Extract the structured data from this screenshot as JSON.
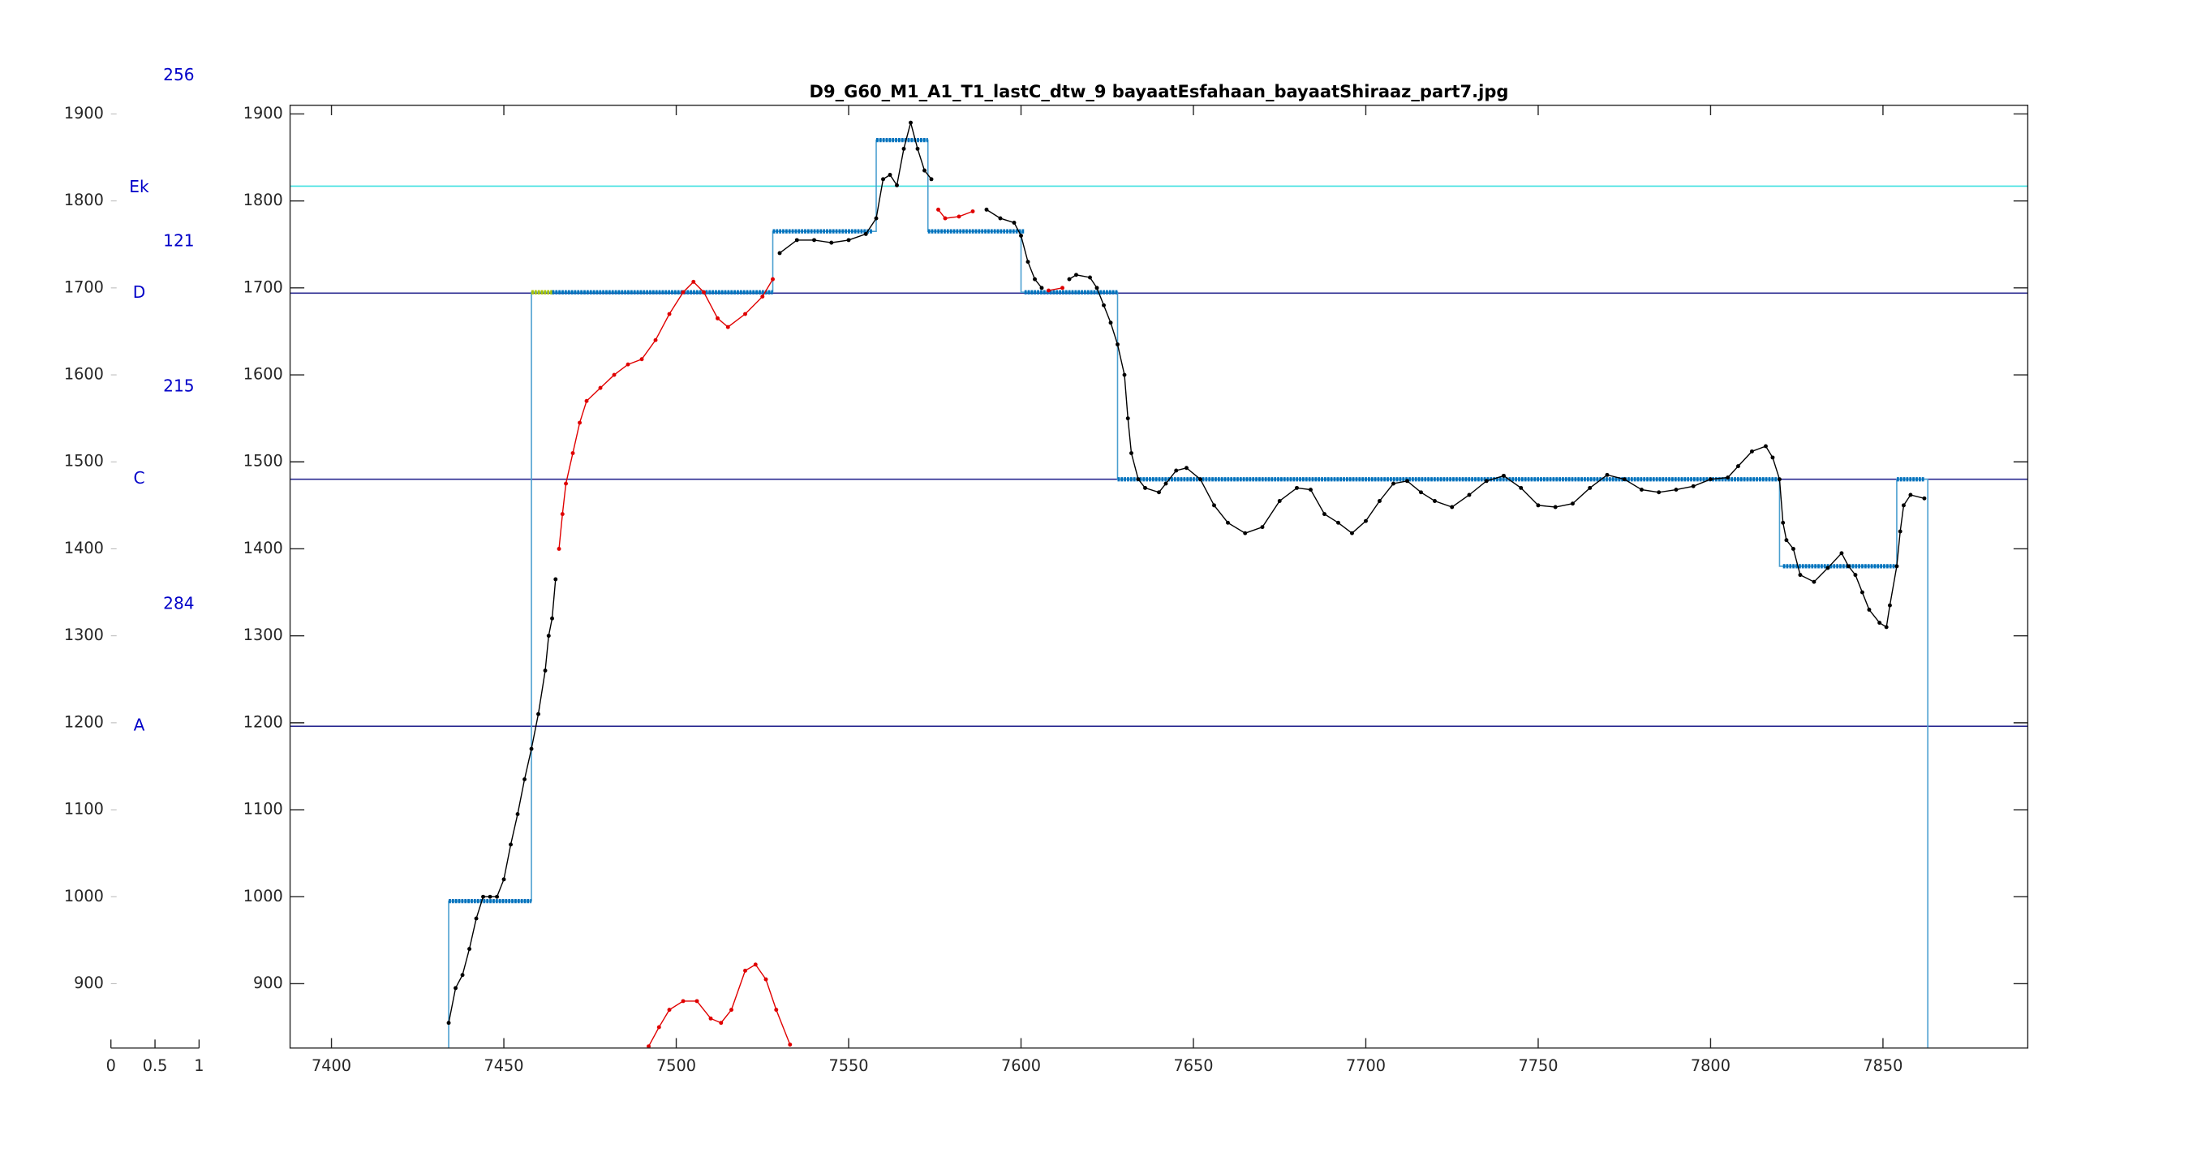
{
  "chart_data": [
    {
      "type": "line",
      "title": "D9_G60_M1_A1_T1_lastC_dtw_9 bayaatEsfahaan_bayaatShiraaz_part7.jpg",
      "xlim": [
        7388,
        7892
      ],
      "xticks": [
        7400,
        7450,
        7500,
        7550,
        7600,
        7650,
        7700,
        7750,
        7800,
        7850
      ],
      "ylim": [
        826,
        1910
      ],
      "yticks": [
        900,
        1000,
        1100,
        1200,
        1300,
        1400,
        1500,
        1600,
        1700,
        1800,
        1900
      ],
      "hlines": [
        {
          "value": 1817,
          "color": "#3fe0e0"
        },
        {
          "value": 1694,
          "color": "#2a2a90"
        },
        {
          "value": 1480,
          "color": "#2a2a90"
        },
        {
          "value": 1196,
          "color": "#2a2a90"
        }
      ],
      "steps": {
        "color": "#4a9fd0",
        "edges": [
          7434,
          7458,
          7528,
          7558,
          7573,
          7600,
          7628,
          7820,
          7854,
          7863
        ],
        "values": [
          995,
          1695,
          1765,
          1870,
          1765,
          1695,
          1480,
          1380,
          1480
        ]
      },
      "segments": [
        {
          "start": 7434,
          "end": 7458,
          "value": 995,
          "color": "#0072bd"
        },
        {
          "start": 7458,
          "end": 7464,
          "value": 1695,
          "color": "#a8c400"
        },
        {
          "start": 7464,
          "end": 7528,
          "value": 1695,
          "color": "#0072bd"
        },
        {
          "start": 7528,
          "end": 7557,
          "value": 1765,
          "color": "#0072bd"
        },
        {
          "start": 7558,
          "end": 7573,
          "value": 1870,
          "color": "#0072bd"
        },
        {
          "start": 7573,
          "end": 7601,
          "value": 1765,
          "color": "#0072bd"
        },
        {
          "start": 7601,
          "end": 7628,
          "value": 1695,
          "color": "#0072bd"
        },
        {
          "start": 7628,
          "end": 7820,
          "value": 1480,
          "color": "#0072bd"
        },
        {
          "start": 7821,
          "end": 7854,
          "value": 1380,
          "color": "#0072bd"
        },
        {
          "start": 7854,
          "end": 7862,
          "value": 1480,
          "color": "#0072bd"
        }
      ],
      "series": [
        {
          "color": "#000000",
          "x": [
            7434,
            7436,
            7438,
            7440,
            7442,
            7444,
            7446,
            7448,
            7450,
            7452,
            7454,
            7456,
            7458,
            7460,
            7462,
            7463,
            7464,
            7465
          ],
          "values": [
            855,
            895,
            910,
            940,
            975,
            1000,
            1000,
            1000,
            1020,
            1060,
            1095,
            1135,
            1170,
            1210,
            1260,
            1300,
            1320,
            1365
          ]
        },
        {
          "color": "#e00000",
          "x": [
            7466,
            7467,
            7468,
            7470,
            7472,
            7474,
            7478,
            7482,
            7486,
            7490,
            7494,
            7498,
            7502,
            7505,
            7508,
            7512,
            7515,
            7520,
            7525,
            7528
          ],
          "values": [
            1400,
            1440,
            1475,
            1510,
            1545,
            1570,
            1585,
            1600,
            1612,
            1618,
            1640,
            1670,
            1695,
            1707,
            1695,
            1665,
            1655,
            1670,
            1690,
            1710
          ]
        },
        {
          "color": "#000000",
          "x": [
            7530,
            7535,
            7540,
            7545,
            7550,
            7555,
            7558,
            7560,
            7562,
            7564,
            7566,
            7568,
            7570,
            7572,
            7574
          ],
          "values": [
            1740,
            1755,
            1755,
            1752,
            1755,
            1762,
            1780,
            1825,
            1830,
            1818,
            1860,
            1890,
            1860,
            1835,
            1825
          ]
        },
        {
          "color": "#e00000",
          "x": [
            7576,
            7578,
            7582,
            7586
          ],
          "values": [
            1790,
            1780,
            1782,
            1788
          ]
        },
        {
          "color": "#000000",
          "x": [
            7590,
            7594,
            7598,
            7600,
            7602,
            7604,
            7606
          ],
          "values": [
            1790,
            1780,
            1775,
            1760,
            1730,
            1710,
            1700
          ]
        },
        {
          "color": "#e00000",
          "x": [
            7608,
            7612
          ],
          "values": [
            1697,
            1700
          ]
        },
        {
          "color": "#000000",
          "x": [
            7614,
            7616,
            7620,
            7622,
            7624,
            7626,
            7628,
            7630,
            7631,
            7632,
            7634,
            7636,
            7640,
            7642,
            7645,
            7648,
            7652,
            7656,
            7660,
            7665,
            7670,
            7675,
            7680,
            7684,
            7688,
            7692,
            7696,
            7700,
            7704,
            7708,
            7712,
            7716,
            7720,
            7725,
            7730,
            7735,
            7740,
            7745,
            7750,
            7755,
            7760,
            7765,
            7770,
            7775,
            7780,
            7785,
            7790,
            7795,
            7800,
            7805,
            7808,
            7812,
            7816,
            7818,
            7820,
            7821,
            7822,
            7824,
            7826,
            7830,
            7834,
            7838,
            7840,
            7842,
            7844,
            7846,
            7849,
            7851,
            7852,
            7854,
            7855,
            7856,
            7858,
            7862
          ],
          "values": [
            1710,
            1715,
            1712,
            1700,
            1680,
            1660,
            1635,
            1600,
            1550,
            1510,
            1480,
            1470,
            1465,
            1475,
            1490,
            1493,
            1480,
            1450,
            1430,
            1418,
            1425,
            1455,
            1470,
            1468,
            1440,
            1430,
            1418,
            1432,
            1455,
            1475,
            1478,
            1465,
            1455,
            1448,
            1462,
            1478,
            1484,
            1470,
            1450,
            1448,
            1452,
            1470,
            1485,
            1480,
            1468,
            1465,
            1468,
            1472,
            1480,
            1482,
            1495,
            1512,
            1518,
            1505,
            1480,
            1430,
            1410,
            1400,
            1370,
            1362,
            1378,
            1395,
            1380,
            1370,
            1350,
            1330,
            1315,
            1310,
            1335,
            1380,
            1420,
            1450,
            1462,
            1458
          ]
        },
        {
          "color": "#e00000",
          "x": [
            7492,
            7495,
            7498,
            7502,
            7506,
            7510,
            7513,
            7516,
            7520,
            7523,
            7526,
            7529,
            7533
          ],
          "values": [
            828,
            850,
            870,
            880,
            880,
            860,
            855,
            870,
            915,
            922,
            905,
            870,
            830
          ]
        }
      ]
    },
    {
      "type": "annotation",
      "xlim": [
        0,
        1
      ],
      "xticks": [
        0,
        0.5,
        1
      ],
      "ylim": [
        826,
        1910
      ],
      "yticks": [
        900,
        1000,
        1100,
        1200,
        1300,
        1400,
        1500,
        1600,
        1700,
        1800,
        1900
      ],
      "annotations": [
        {
          "text": "256",
          "x": 0.77,
          "y": 1944
        },
        {
          "text": "Ek",
          "x": 0.32,
          "y": 1815
        },
        {
          "text": "121",
          "x": 0.77,
          "y": 1753
        },
        {
          "text": "D",
          "x": 0.32,
          "y": 1694
        },
        {
          "text": "215",
          "x": 0.77,
          "y": 1586
        },
        {
          "text": "C",
          "x": 0.32,
          "y": 1480
        },
        {
          "text": "284",
          "x": 0.77,
          "y": 1336
        },
        {
          "text": "A",
          "x": 0.32,
          "y": 1196
        }
      ]
    }
  ]
}
